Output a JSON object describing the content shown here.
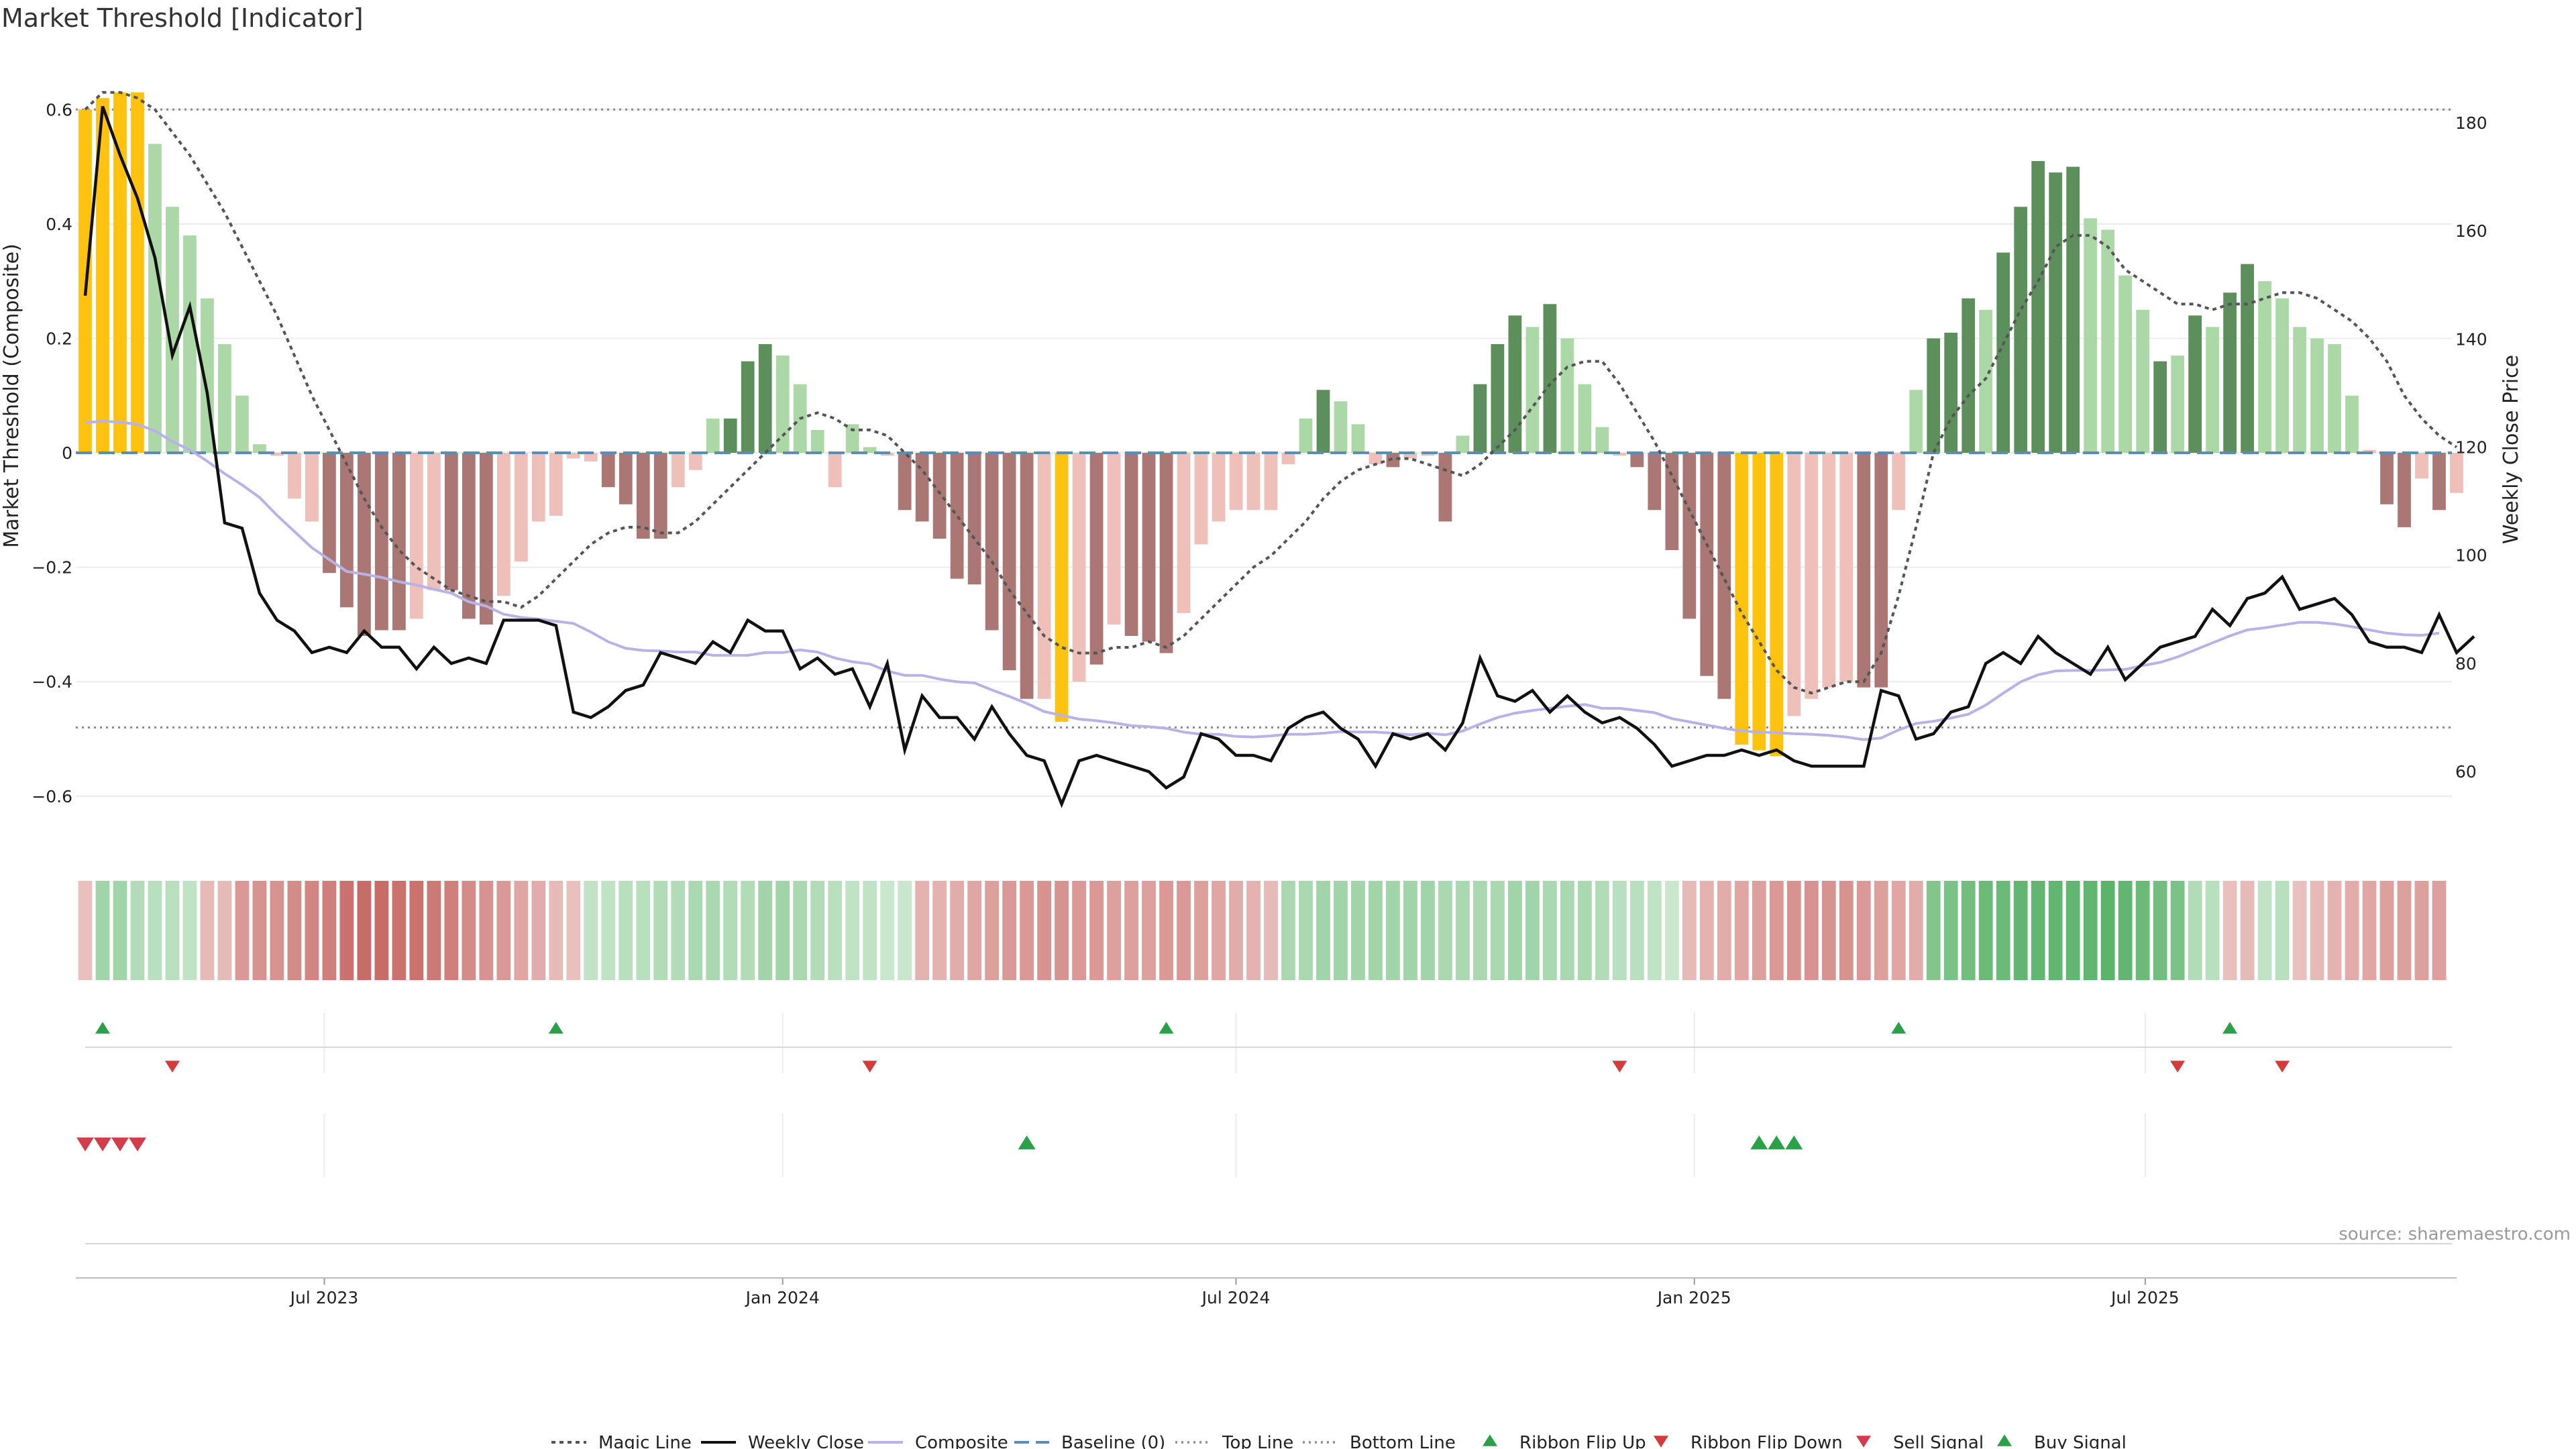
{
  "chart_data": {
    "type": "bar",
    "title": "Market Threshold [Indicator]",
    "ylabel": "Market Threshold (Composite)",
    "y2label": "Weekly Close Price",
    "ylim": [
      -0.68,
      0.7
    ],
    "y2lim": [
      47,
      193
    ],
    "yticks": [
      "0.6",
      "0.4",
      "0.2",
      "0",
      "−0.2",
      "−0.4",
      "−0.6"
    ],
    "y2ticks": [
      "180",
      "160",
      "140",
      "120",
      "100",
      "80",
      "60"
    ],
    "xticks": [
      "Jul 2023",
      "Jan 2024",
      "Jul 2024",
      "Jan 2025",
      "Jul 2025"
    ],
    "source": "source: sharemaestro.com",
    "top_line": 0.6,
    "bottom_line": -0.48,
    "grid": true,
    "legend_position": "bottom",
    "colors": {
      "magic_line": "#555555",
      "weekly_close": "#111111",
      "composite": "#b9b2e6",
      "baseline": "#5b8db8",
      "yellow": "#ffc20e",
      "pos_light": "#acd8a8",
      "pos_dark": "#5d8f5d",
      "neg_light": "#efbfba",
      "neg_dark": "#aa7774",
      "up_marker": "#2ca048",
      "down_marker": "#d43b3b",
      "sell_marker": "#d43b4b"
    },
    "composite_bars": [
      0.6,
      0.62,
      0.63,
      0.63,
      0.54,
      0.43,
      0.38,
      0.27,
      0.19,
      0.1,
      0.015,
      -0.005,
      -0.08,
      -0.12,
      -0.21,
      -0.27,
      -0.32,
      -0.31,
      -0.31,
      -0.29,
      -0.24,
      -0.24,
      -0.29,
      -0.3,
      -0.25,
      -0.19,
      -0.12,
      -0.11,
      -0.01,
      -0.015,
      -0.06,
      -0.09,
      -0.15,
      -0.15,
      -0.06,
      -0.03,
      0.06,
      0.06,
      0.16,
      0.19,
      0.17,
      0.12,
      0.04,
      -0.06,
      0.05,
      0.01,
      -0.005,
      -0.1,
      -0.12,
      -0.15,
      -0.22,
      -0.23,
      -0.31,
      -0.38,
      -0.43,
      -0.43,
      -0.47,
      -0.4,
      -0.37,
      -0.3,
      -0.32,
      -0.33,
      -0.35,
      -0.28,
      -0.16,
      -0.12,
      -0.1,
      -0.1,
      -0.1,
      -0.02,
      0.06,
      0.11,
      0.09,
      0.05,
      -0.02,
      -0.025,
      -0.01,
      -0.005,
      -0.12,
      0.03,
      0.12,
      0.19,
      0.24,
      0.22,
      0.26,
      0.2,
      0.12,
      0.045,
      -0.005,
      -0.025,
      -0.1,
      -0.17,
      -0.29,
      -0.39,
      -0.43,
      -0.51,
      -0.52,
      -0.53,
      -0.46,
      -0.43,
      -0.41,
      -0.4,
      -0.41,
      -0.41,
      -0.1,
      0.11,
      0.2,
      0.21,
      0.27,
      0.25,
      0.35,
      0.43,
      0.51,
      0.49,
      0.5,
      0.41,
      0.39,
      0.31,
      0.25,
      0.16,
      0.17,
      0.24,
      0.22,
      0.28,
      0.33,
      0.3,
      0.27,
      0.22,
      0.2,
      0.19,
      0.1,
      0.005,
      -0.09,
      -0.13,
      -0.045,
      -0.1,
      -0.07
    ],
    "bar_colors": [
      "yellow",
      "yellow",
      "yellow",
      "yellow",
      "pos_light",
      "pos_light",
      "pos_light",
      "pos_light",
      "pos_light",
      "pos_light",
      "pos_light",
      "neg_light",
      "neg_light",
      "neg_light",
      "neg_dark",
      "neg_dark",
      "neg_dark",
      "neg_dark",
      "neg_dark",
      "neg_light",
      "neg_light",
      "neg_dark",
      "neg_dark",
      "neg_dark",
      "neg_light",
      "neg_light",
      "neg_light",
      "neg_light",
      "neg_light",
      "neg_light",
      "neg_dark",
      "neg_dark",
      "neg_dark",
      "neg_dark",
      "neg_light",
      "neg_light",
      "pos_light",
      "pos_dark",
      "pos_dark",
      "pos_dark",
      "pos_light",
      "pos_light",
      "pos_light",
      "neg_light",
      "pos_light",
      "pos_light",
      "neg_light",
      "neg_dark",
      "neg_dark",
      "neg_dark",
      "neg_dark",
      "neg_dark",
      "neg_dark",
      "neg_dark",
      "neg_dark",
      "neg_light",
      "yellow",
      "neg_light",
      "neg_dark",
      "neg_light",
      "neg_dark",
      "neg_dark",
      "neg_dark",
      "neg_light",
      "neg_light",
      "neg_light",
      "neg_light",
      "neg_light",
      "neg_light",
      "neg_light",
      "pos_light",
      "pos_dark",
      "pos_light",
      "pos_light",
      "neg_light",
      "neg_dark",
      "neg_light",
      "neg_light",
      "neg_dark",
      "pos_light",
      "pos_dark",
      "pos_dark",
      "pos_dark",
      "pos_light",
      "pos_dark",
      "pos_light",
      "pos_light",
      "pos_light",
      "neg_light",
      "neg_dark",
      "neg_dark",
      "neg_dark",
      "neg_dark",
      "neg_dark",
      "neg_dark",
      "yellow",
      "yellow",
      "yellow",
      "neg_light",
      "neg_light",
      "neg_light",
      "neg_light",
      "neg_dark",
      "neg_dark",
      "neg_light",
      "pos_light",
      "pos_dark",
      "pos_dark",
      "pos_dark",
      "pos_light",
      "pos_dark",
      "pos_dark",
      "pos_dark",
      "pos_dark",
      "pos_dark",
      "pos_light",
      "pos_light",
      "pos_light",
      "pos_light",
      "pos_dark",
      "pos_light",
      "pos_dark",
      "pos_light",
      "pos_dark",
      "pos_dark",
      "pos_light",
      "pos_light",
      "pos_light",
      "pos_light",
      "pos_light",
      "pos_light",
      "neg_light",
      "neg_dark",
      "neg_dark",
      "neg_light",
      "neg_dark",
      "neg_light"
    ],
    "weekly_close": [
      148,
      183,
      174,
      166,
      155,
      137,
      146,
      130,
      106,
      105,
      93,
      88,
      86,
      82,
      83,
      82,
      86,
      83,
      83,
      79,
      83,
      80,
      81,
      80,
      88,
      88,
      88,
      87,
      71,
      70,
      72,
      75,
      76,
      82,
      81,
      80,
      84,
      82,
      88,
      86,
      86,
      79,
      81,
      78,
      79,
      72,
      80,
      64,
      74,
      70,
      70,
      66,
      72,
      67,
      63,
      62,
      54,
      62,
      63,
      62,
      61,
      60,
      57,
      59,
      67,
      66,
      63,
      63,
      62,
      68,
      70,
      71,
      68,
      66,
      61,
      67,
      66,
      67,
      64,
      69,
      81,
      74,
      73,
      75,
      71,
      74,
      71,
      69,
      70,
      68,
      65,
      61,
      62,
      63,
      63,
      64,
      63,
      64,
      62,
      61,
      61,
      61,
      61,
      75,
      74,
      66,
      67,
      71,
      72,
      80,
      82,
      80,
      85,
      82,
      80,
      78,
      83,
      77,
      80,
      83,
      84,
      85,
      90,
      87,
      92,
      93,
      96,
      90,
      91,
      92,
      89,
      84,
      83,
      83,
      82,
      89,
      82,
      85
    ],
    "composite_line": [
      124.5,
      124.8,
      124.6,
      124.2,
      123,
      121,
      119.5,
      117.4,
      115.1,
      113,
      110.7,
      107.4,
      104.4,
      101.4,
      99.2,
      97,
      96.5,
      95.9,
      95.1,
      94.5,
      93.7,
      93,
      91.4,
      90.6,
      89.1,
      88.5,
      88.2,
      87.8,
      87.4,
      85.8,
      84,
      82.8,
      82.4,
      82.3,
      82.1,
      82.1,
      81.5,
      81.5,
      81.5,
      82,
      82,
      82.5,
      82.1,
      81,
      80.3,
      79.9,
      78.6,
      77.8,
      77.8,
      77.1,
      76.6,
      76.4,
      75.1,
      73.9,
      72.6,
      71.1,
      70.4,
      69.7,
      69.4,
      69,
      68.5,
      68.3,
      68,
      67.3,
      66.9,
      66.9,
      66.5,
      66.4,
      66.6,
      66.9,
      66.9,
      67.1,
      67.4,
      67.3,
      67.3,
      67.1,
      66.8,
      67.1,
      66.8,
      67.5,
      68.8,
      70,
      70.8,
      71.3,
      71.7,
      72.1,
      72.4,
      71.7,
      71.7,
      71.3,
      70.9,
      69.8,
      69.2,
      68.6,
      68,
      67.5,
      67.3,
      67.2,
      67,
      66.9,
      66.7,
      66.4,
      65.9,
      66.2,
      67.7,
      68.9,
      69.3,
      69.9,
      70.6,
      72.3,
      74.5,
      76.6,
      77.9,
      78.6,
      78.7,
      78.7,
      78.8,
      78.9,
      79.6,
      80.2,
      81.2,
      82.5,
      83.8,
      85.1,
      86.2,
      86.6,
      87.1,
      87.6,
      87.6,
      87.3,
      86.8,
      86.2,
      85.6,
      85.3,
      85.2,
      85.6
    ],
    "magic_line": [
      0.6,
      0.63,
      0.63,
      0.62,
      0.6,
      0.56,
      0.52,
      0.47,
      0.42,
      0.36,
      0.3,
      0.24,
      0.17,
      0.1,
      0.04,
      -0.02,
      -0.08,
      -0.13,
      -0.17,
      -0.2,
      -0.22,
      -0.24,
      -0.25,
      -0.26,
      -0.26,
      -0.27,
      -0.25,
      -0.22,
      -0.19,
      -0.16,
      -0.14,
      -0.13,
      -0.13,
      -0.14,
      -0.14,
      -0.12,
      -0.09,
      -0.06,
      -0.03,
      0.0,
      0.03,
      0.06,
      0.07,
      0.06,
      0.04,
      0.04,
      0.03,
      0.0,
      -0.03,
      -0.07,
      -0.11,
      -0.15,
      -0.19,
      -0.24,
      -0.28,
      -0.32,
      -0.34,
      -0.35,
      -0.35,
      -0.34,
      -0.34,
      -0.33,
      -0.34,
      -0.32,
      -0.29,
      -0.26,
      -0.23,
      -0.2,
      -0.18,
      -0.15,
      -0.12,
      -0.08,
      -0.05,
      -0.03,
      -0.02,
      -0.01,
      -0.01,
      -0.02,
      -0.03,
      -0.04,
      -0.02,
      0.01,
      0.04,
      0.08,
      0.12,
      0.15,
      0.16,
      0.16,
      0.12,
      0.07,
      0.02,
      -0.04,
      -0.1,
      -0.16,
      -0.22,
      -0.28,
      -0.33,
      -0.38,
      -0.41,
      -0.42,
      -0.41,
      -0.4,
      -0.4,
      -0.35,
      -0.25,
      -0.13,
      0.0,
      0.06,
      0.1,
      0.13,
      0.19,
      0.25,
      0.3,
      0.36,
      0.38,
      0.38,
      0.36,
      0.32,
      0.3,
      0.28,
      0.26,
      0.26,
      0.25,
      0.26,
      0.26,
      0.27,
      0.28,
      0.28,
      0.27,
      0.25,
      0.23,
      0.2,
      0.16,
      0.1,
      0.06,
      0.03,
      0.01
    ],
    "ribbon_levels": [
      -0.2,
      0.45,
      0.45,
      0.35,
      0.3,
      0.3,
      0.25,
      -0.25,
      -0.25,
      -0.5,
      -0.55,
      -0.55,
      -0.6,
      -0.65,
      -0.7,
      -0.8,
      -0.85,
      -0.85,
      -0.8,
      -0.8,
      -0.75,
      -0.7,
      -0.6,
      -0.55,
      -0.5,
      -0.4,
      -0.35,
      -0.25,
      -0.2,
      0.25,
      0.25,
      0.3,
      0.3,
      0.35,
      0.35,
      0.4,
      0.4,
      0.35,
      0.35,
      0.45,
      0.45,
      0.4,
      0.35,
      0.3,
      0.25,
      0.25,
      0.2,
      0.2,
      -0.3,
      -0.3,
      -0.35,
      -0.4,
      -0.45,
      -0.5,
      -0.5,
      -0.55,
      -0.55,
      -0.5,
      -0.5,
      -0.45,
      -0.45,
      -0.45,
      -0.5,
      -0.5,
      -0.45,
      -0.4,
      -0.35,
      -0.3,
      -0.25,
      0.4,
      0.4,
      0.45,
      0.45,
      0.45,
      0.45,
      0.45,
      0.45,
      0.45,
      0.4,
      0.4,
      0.4,
      0.4,
      0.45,
      0.45,
      0.4,
      0.4,
      0.4,
      0.35,
      0.3,
      0.3,
      0.25,
      0.2,
      -0.25,
      -0.3,
      -0.35,
      -0.4,
      -0.45,
      -0.5,
      -0.55,
      -0.55,
      -0.55,
      -0.55,
      -0.5,
      -0.45,
      -0.4,
      -0.35,
      0.65,
      0.7,
      0.75,
      0.8,
      0.8,
      0.85,
      0.85,
      0.85,
      0.85,
      0.85,
      0.9,
      0.85,
      0.8,
      0.75,
      0.7,
      0.35,
      0.3,
      -0.2,
      -0.25,
      0.25,
      0.3,
      -0.2,
      -0.25,
      -0.3,
      -0.35,
      -0.4,
      -0.45,
      -0.45,
      -0.45,
      -0.45
    ],
    "ribbon_flip_up": [
      1,
      27,
      62,
      104,
      123
    ],
    "ribbon_flip_down": [
      5,
      45,
      88,
      120,
      126
    ],
    "sell_signal": [
      0,
      1,
      2,
      3
    ],
    "buy_signal": [
      54,
      96,
      97,
      98
    ],
    "first_week": "2023-03-27",
    "legend": [
      "Magic Line",
      "Weekly Close",
      "Composite",
      "Baseline (0)",
      "Top Line",
      "Bottom Line",
      "Ribbon Flip Up",
      "Ribbon Flip Down",
      "Sell Signal",
      "Buy Signal"
    ]
  }
}
